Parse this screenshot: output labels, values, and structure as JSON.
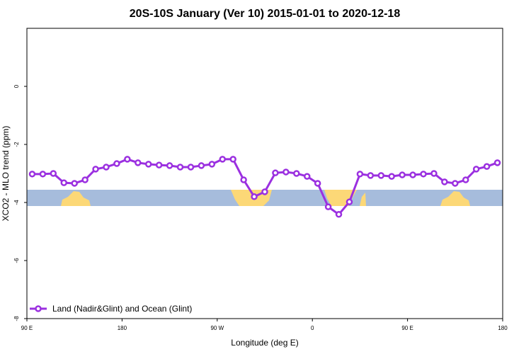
{
  "chart_data": {
    "type": "line",
    "title": "20S-10S January (Ver 10)   2015-01-01 to 2020-12-18",
    "x_label": "Longitude (deg E)",
    "y_label": "XCO2 - MLO trend (ppm)",
    "x": [
      95,
      105,
      115,
      125,
      135,
      145,
      155,
      165,
      175,
      185,
      195,
      205,
      215,
      225,
      235,
      245,
      255,
      265,
      275,
      285,
      295,
      305,
      315,
      325,
      335,
      345,
      355,
      365,
      375,
      385,
      395,
      405,
      415,
      425,
      435,
      445,
      455,
      465,
      475,
      485,
      495,
      505,
      515,
      525,
      535
    ],
    "series": [
      {
        "name": "Land (Nadir&Glint) and Ocean (Glint)",
        "color": "#9b30e0",
        "values": [
          -3.02,
          -3.02,
          -3.0,
          -3.32,
          -3.34,
          -3.22,
          -2.85,
          -2.78,
          -2.66,
          -2.51,
          -2.63,
          -2.68,
          -2.71,
          -2.73,
          -2.78,
          -2.78,
          -2.73,
          -2.68,
          -2.51,
          -2.51,
          -3.22,
          -3.8,
          -3.63,
          -2.98,
          -2.95,
          -3.0,
          -3.1,
          -3.34,
          -4.15,
          -4.41,
          -3.98,
          -3.02,
          -3.07,
          -3.07,
          -3.1,
          -3.05,
          -3.05,
          -3.02,
          -3.0,
          -3.29,
          -3.34,
          -3.22,
          -2.85,
          -2.76,
          -2.63
        ]
      }
    ],
    "xlim": [
      90,
      540
    ],
    "xticks": [
      {
        "value": 90,
        "label": "90 E"
      },
      180,
      {
        "value": 270,
        "label": "90 W"
      },
      {
        "value": 360,
        "label": "0"
      },
      {
        "value": 450,
        "label": "90 E"
      },
      {
        "value": 540,
        "label": "180"
      }
    ],
    "ylim": [
      -8,
      2
    ],
    "yticks": [
      -8,
      -6,
      -4,
      -2,
      0
    ],
    "legend": "bottom-left"
  }
}
